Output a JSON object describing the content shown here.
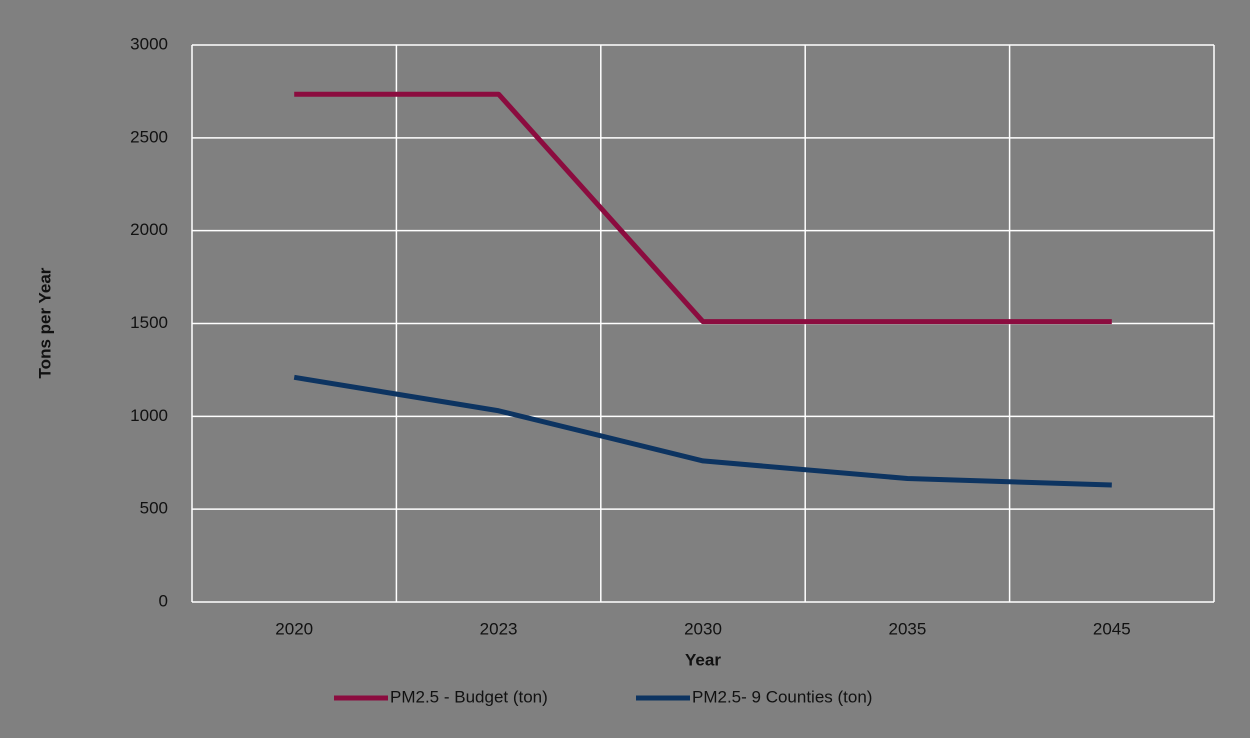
{
  "chart_data": {
    "type": "line",
    "x_label": "Year",
    "y_label": "Tons per Year",
    "categories": [
      "2020",
      "2023",
      "2030",
      "2035",
      "2045"
    ],
    "series": [
      {
        "name": "PM2.5 - Budget (ton)",
        "color": "#8b0c3f",
        "values": [
          2735,
          2735,
          1510,
          1510,
          1510
        ]
      },
      {
        "name": "PM2.5- 9 Counties (ton)",
        "color": "#0d3461",
        "values": [
          1210,
          1030,
          760,
          665,
          630
        ]
      }
    ],
    "ylim": [
      0,
      3000
    ],
    "yticks": [
      0,
      500,
      1000,
      1500,
      2000,
      2500,
      3000
    ],
    "grid": true,
    "legend": "bottom"
  }
}
